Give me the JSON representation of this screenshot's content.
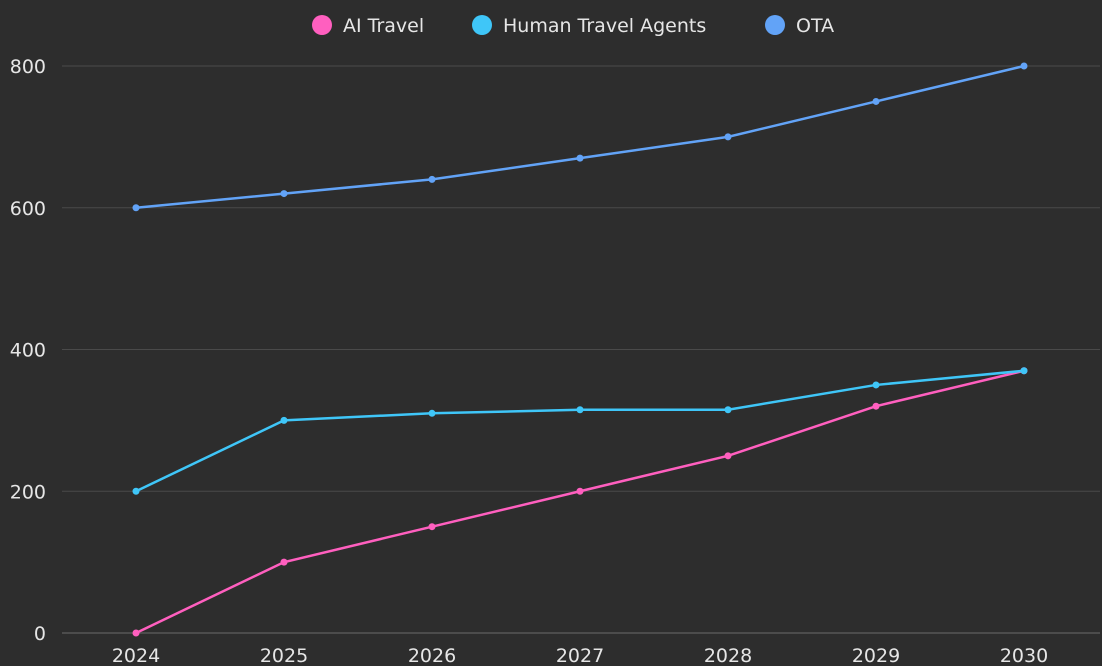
{
  "chart_data": {
    "type": "line",
    "title": "",
    "xlabel": "",
    "ylabel": "",
    "categories": [
      "2024",
      "2025",
      "2026",
      "2027",
      "2028",
      "2029",
      "2030"
    ],
    "ylim": [
      0,
      800
    ],
    "yticks": [
      "0",
      "200",
      "400",
      "600",
      "800"
    ],
    "grid": true,
    "legend_position": "top",
    "series": [
      {
        "name": "AI Travel",
        "color": "#ff5fbf",
        "values": [
          0,
          100,
          150,
          200,
          250,
          320,
          370
        ]
      },
      {
        "name": "Human Travel Agents",
        "color": "#3fc6f8",
        "values": [
          200,
          300,
          310,
          315,
          315,
          350,
          370
        ]
      },
      {
        "name": "OTA",
        "color": "#62a3f7",
        "values": [
          600,
          620,
          640,
          670,
          700,
          750,
          800
        ]
      }
    ]
  }
}
